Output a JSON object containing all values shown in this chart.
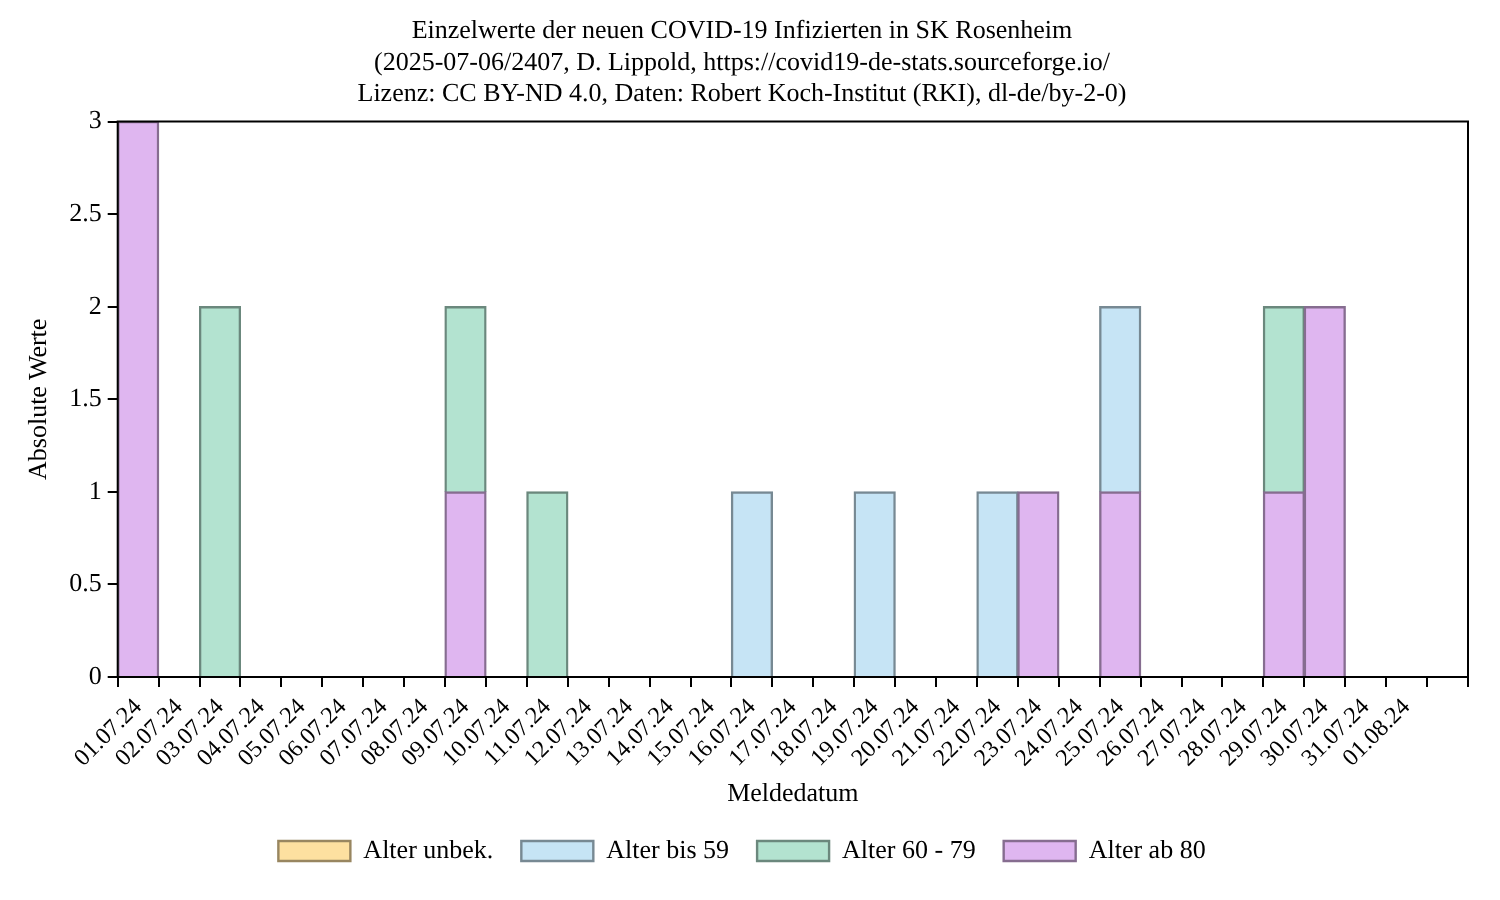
{
  "chart_data": {
    "type": "bar",
    "title": [
      "Einzelwerte der neuen COVID-19 Infizierten in SK Rosenheim",
      "(2025-07-06/2407, D. Lippold, https://covid19-de-stats.sourceforge.io/",
      "Lizenz: CC BY-ND 4.0, Daten: Robert Koch-Institut (RKI), dl-de/by-2-0)"
    ],
    "xlabel": "Meldedatum",
    "ylabel": "Absolute Werte",
    "categories": [
      "01.07.24",
      "02.07.24",
      "03.07.24",
      "04.07.24",
      "05.07.24",
      "06.07.24",
      "07.07.24",
      "08.07.24",
      "09.07.24",
      "10.07.24",
      "11.07.24",
      "12.07.24",
      "13.07.24",
      "14.07.24",
      "15.07.24",
      "16.07.24",
      "17.07.24",
      "18.07.24",
      "19.07.24",
      "20.07.24",
      "21.07.24",
      "22.07.24",
      "23.07.24",
      "24.07.24",
      "25.07.24",
      "26.07.24",
      "27.07.24",
      "28.07.24",
      "29.07.24",
      "30.07.24",
      "31.07.24",
      "01.08.24",
      null
    ],
    "stacked": true,
    "series": [
      {
        "name": "Alter ab 80",
        "color": "#dfb6f0",
        "values": [
          3,
          0,
          0,
          0,
          0,
          0,
          0,
          0,
          1,
          0,
          0,
          0,
          0,
          0,
          0,
          0,
          0,
          0,
          0,
          0,
          0,
          0,
          1,
          0,
          1,
          0,
          0,
          0,
          1,
          2,
          0,
          0,
          0
        ]
      },
      {
        "name": "Alter 60 - 79",
        "color": "#b3e3d0",
        "values": [
          0,
          0,
          2,
          0,
          0,
          0,
          0,
          0,
          1,
          0,
          1,
          0,
          0,
          0,
          0,
          0,
          0,
          0,
          0,
          0,
          0,
          0,
          0,
          0,
          0,
          0,
          0,
          0,
          1,
          0,
          0,
          0,
          0
        ]
      },
      {
        "name": "Alter bis 59",
        "color": "#c6e4f5",
        "values": [
          0,
          0,
          0,
          0,
          0,
          0,
          0,
          0,
          0,
          0,
          0,
          0,
          0,
          0,
          0,
          1,
          0,
          0,
          1,
          0,
          0,
          1,
          0,
          0,
          1,
          0,
          0,
          0,
          0,
          0,
          0,
          0,
          0
        ]
      },
      {
        "name": "Alter unbek.",
        "color": "#fde0a0",
        "values": [
          0,
          0,
          0,
          0,
          0,
          0,
          0,
          0,
          0,
          0,
          0,
          0,
          0,
          0,
          0,
          0,
          0,
          0,
          0,
          0,
          0,
          0,
          0,
          0,
          0,
          0,
          0,
          0,
          0,
          0,
          0,
          0,
          0
        ]
      }
    ],
    "ylim": [
      0,
      3
    ],
    "yticks": [
      0,
      0.5,
      1,
      1.5,
      2,
      2.5,
      3
    ],
    "grid": false,
    "legend": "bottom"
  }
}
